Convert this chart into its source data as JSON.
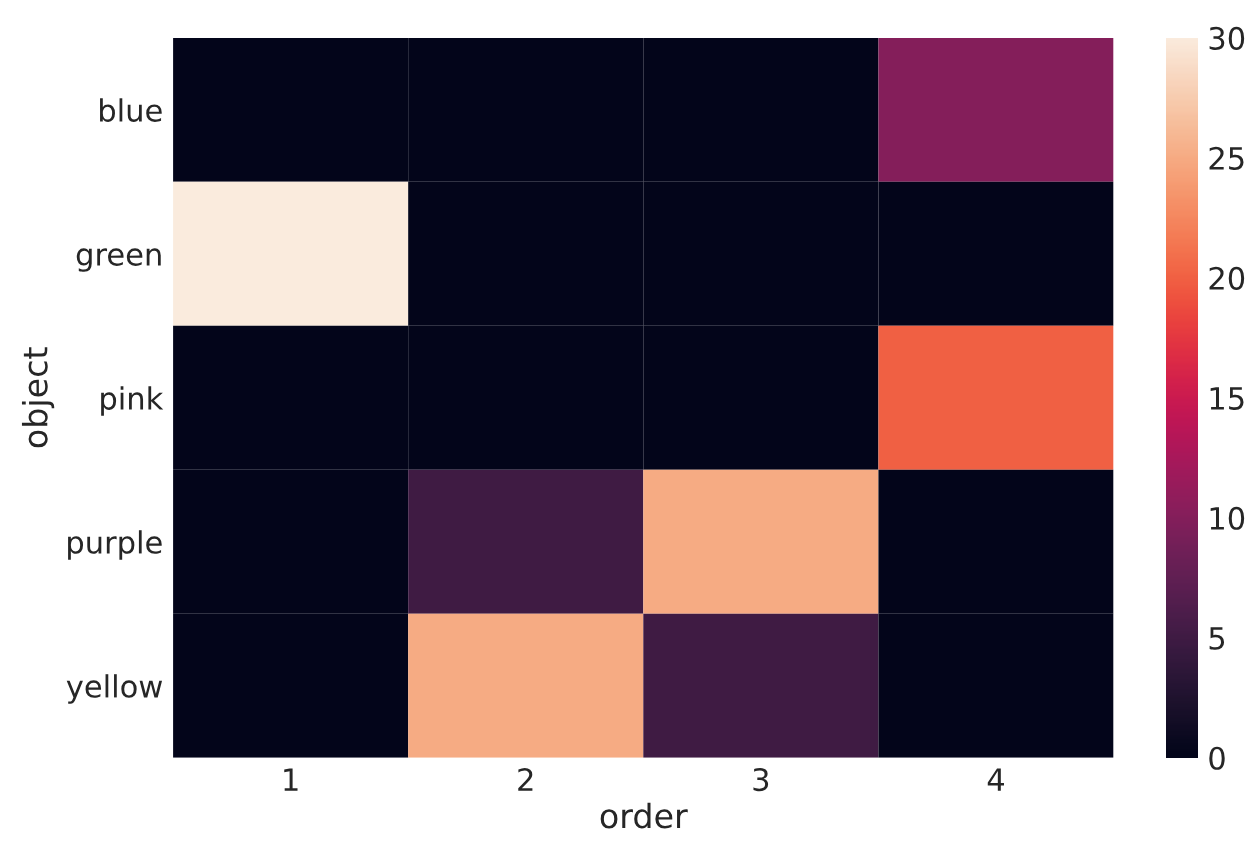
{
  "chart_data": {
    "type": "heatmap",
    "xlabel": "order",
    "ylabel": "object",
    "categories": [
      "1",
      "2",
      "3",
      "4"
    ],
    "y_categories": [
      "blue",
      "green",
      "pink",
      "purple",
      "yellow"
    ],
    "cells": [
      [
        0,
        0,
        0,
        10
      ],
      [
        30,
        0,
        0,
        0
      ],
      [
        0,
        0,
        0,
        20
      ],
      [
        0,
        5,
        25,
        0
      ],
      [
        0,
        25,
        5,
        0
      ]
    ],
    "clim": [
      0,
      30
    ],
    "cticks": [
      0,
      5,
      10,
      15,
      20,
      25,
      30
    ]
  }
}
